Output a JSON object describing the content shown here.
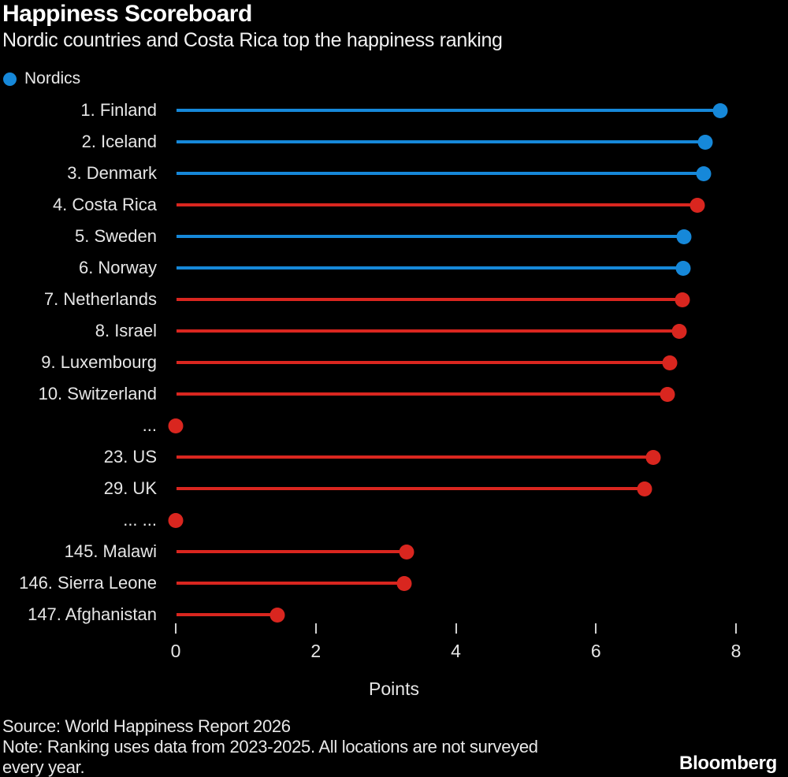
{
  "header": {
    "title": "Happiness Scoreboard",
    "subtitle": "Nordic countries and Costa Rica top the happiness ranking"
  },
  "legend": {
    "label": "Nordics"
  },
  "chart_data": {
    "type": "bar",
    "variant": "lollipop",
    "orientation": "horizontal",
    "xlabel": "Points",
    "xlim": [
      0,
      8
    ],
    "xticks": [
      0,
      2,
      4,
      6,
      8
    ],
    "grid": false,
    "legend_position": "top-left",
    "colors": {
      "nordics": "#1688d9",
      "other": "#d9261f"
    },
    "rows": [
      {
        "label": "1. Finland",
        "value": 7.78,
        "group": "nordics",
        "dot_only": false
      },
      {
        "label": "2. Iceland",
        "value": 7.56,
        "group": "nordics",
        "dot_only": false
      },
      {
        "label": "3. Denmark",
        "value": 7.54,
        "group": "nordics",
        "dot_only": false
      },
      {
        "label": "4. Costa Rica",
        "value": 7.45,
        "group": "other",
        "dot_only": false
      },
      {
        "label": "5. Sweden",
        "value": 7.26,
        "group": "nordics",
        "dot_only": false
      },
      {
        "label": "6. Norway",
        "value": 7.25,
        "group": "nordics",
        "dot_only": false
      },
      {
        "label": "7. Netherlands",
        "value": 7.23,
        "group": "other",
        "dot_only": false
      },
      {
        "label": "8. Israel",
        "value": 7.19,
        "group": "other",
        "dot_only": false
      },
      {
        "label": "9. Luxembourg",
        "value": 7.06,
        "group": "other",
        "dot_only": false
      },
      {
        "label": "10. Switzerland",
        "value": 7.02,
        "group": "other",
        "dot_only": false
      },
      {
        "label": "...",
        "value": 0,
        "group": "other",
        "dot_only": true
      },
      {
        "label": "23. US",
        "value": 6.82,
        "group": "other",
        "dot_only": false
      },
      {
        "label": "29. UK",
        "value": 6.7,
        "group": "other",
        "dot_only": false
      },
      {
        "label": "... ...",
        "value": 0,
        "group": "other",
        "dot_only": true
      },
      {
        "label": "145. Malawi",
        "value": 3.3,
        "group": "other",
        "dot_only": false
      },
      {
        "label": "146. Sierra Leone",
        "value": 3.26,
        "group": "other",
        "dot_only": false
      },
      {
        "label": "147. Afghanistan",
        "value": 1.45,
        "group": "other",
        "dot_only": false
      }
    ]
  },
  "footer": {
    "source": "Source: World Happiness Report 2026",
    "note_lines": [
      "Note: Ranking uses data from 2023-2025. All locations are not surveyed",
      "every year."
    ],
    "brand": "Bloomberg"
  }
}
